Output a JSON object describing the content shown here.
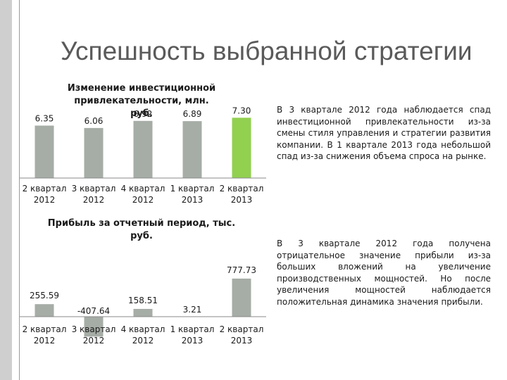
{
  "slide": {
    "title": "Успешность выбранной стратегии",
    "paragraph_1": "В 3 квартале 2012 года наблюдается спад инвестиционной привлекательности из-за смены стиля управления и стратегии развития компании. В 1 квартале 2013 года небольшой спад из-за снижения объема спроса на рынке.",
    "paragraph_2": "В 3 квартале 2012 года получена отрицательное значение прибыли из-за больших вложений на увеличение производственных мощностей. Но после увеличения мощностей наблюдается положительная динамика значения прибыли."
  },
  "colors": {
    "bar": "#a6aca6",
    "highlight": "#92d050",
    "axis": "#8a8a8a",
    "accent_side": "#cfcfcf"
  },
  "chart_data": [
    {
      "type": "bar",
      "title_lines": [
        "Изменение инвестиционной",
        "привлекательности, млн.",
        "руб."
      ],
      "categories": [
        [
          "2 квартал",
          "2012"
        ],
        [
          "3 квартал",
          "2012"
        ],
        [
          "4 квартал",
          "2012"
        ],
        [
          "1 квартал",
          "2013"
        ],
        [
          "2 квартал",
          "2013"
        ]
      ],
      "values": [
        6.35,
        6.06,
        6.92,
        6.89,
        7.3
      ],
      "data_labels": [
        "6.35",
        "6.06",
        "6.92",
        "6.89",
        "7.30"
      ],
      "highlight_index": 4,
      "xlabel": "",
      "ylabel": "",
      "ylim": [
        0,
        8.35
      ],
      "grid": false
    },
    {
      "type": "bar",
      "title_lines": [
        "Прибыль за отчетный период, тыс.",
        "руб."
      ],
      "categories": [
        [
          "2 квартал",
          "2012"
        ],
        [
          "3 квартал",
          "2012"
        ],
        [
          "4 квартал",
          "2012"
        ],
        [
          "1 квартал",
          "2013"
        ],
        [
          "2 квартал",
          "2013"
        ]
      ],
      "values": [
        255.59,
        -407.64,
        158.51,
        3.21,
        777.73
      ],
      "data_labels": [
        "255.59",
        "-407.64",
        "158.51",
        "3.21",
        "777.73"
      ],
      "highlight_index": -1,
      "xlabel": "",
      "ylabel": "",
      "ylim": [
        -430,
        1150
      ],
      "grid": false
    }
  ]
}
